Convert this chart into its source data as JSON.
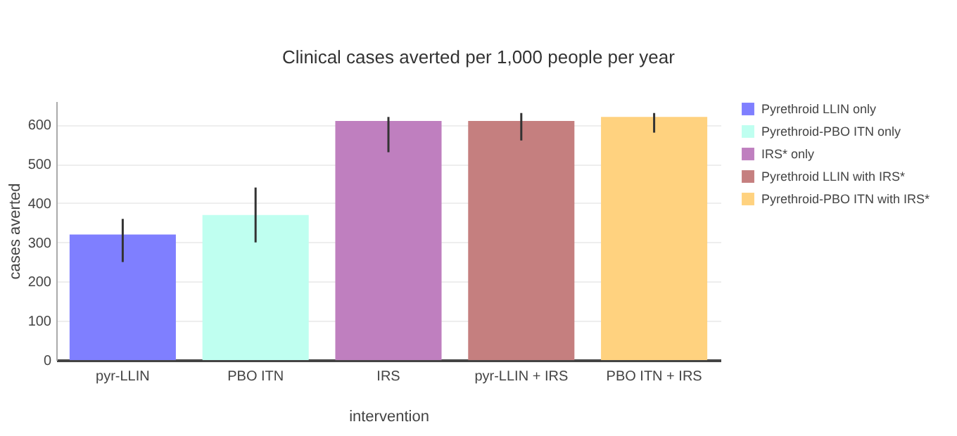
{
  "chart_data": {
    "type": "bar",
    "title": "Clinical cases averted per 1,000 people per year",
    "xlabel": "intervention",
    "ylabel": "cases averted",
    "categories": [
      "pyr-LLIN",
      "PBO ITN",
      "IRS",
      "pyr-LLIN + IRS",
      "PBO ITN + IRS"
    ],
    "series": [
      {
        "name": "Pyrethroid LLIN only",
        "color": "#7f7fff",
        "values": [
          320,
          null,
          null,
          null,
          null
        ],
        "errors": [
          [
            250,
            360
          ],
          null,
          null,
          null,
          null
        ]
      },
      {
        "name": "Pyrethroid-PBO ITN only",
        "color": "#bffff0",
        "values": [
          null,
          370,
          null,
          null,
          null
        ],
        "errors": [
          null,
          [
            300,
            440
          ],
          null,
          null,
          null
        ]
      },
      {
        "name": "IRS* only",
        "color": "#bf7fbf",
        "values": [
          null,
          null,
          610,
          null,
          null
        ],
        "errors": [
          null,
          null,
          [
            530,
            620
          ],
          null,
          null
        ]
      },
      {
        "name": "Pyrethroid LLIN with IRS*",
        "color": "#c57f7f",
        "values": [
          null,
          null,
          null,
          610,
          null
        ],
        "errors": [
          null,
          null,
          null,
          [
            560,
            630
          ],
          null
        ]
      },
      {
        "name": "Pyrethroid-PBO ITN with IRS*",
        "color": "#ffd27f",
        "values": [
          null,
          null,
          null,
          null,
          620
        ],
        "errors": [
          null,
          null,
          null,
          null,
          [
            580,
            630
          ]
        ]
      }
    ],
    "ylim": [
      0,
      660
    ],
    "yticks": [
      0,
      100,
      200,
      300,
      400,
      500,
      600
    ],
    "grid": "y",
    "legend": "right"
  }
}
